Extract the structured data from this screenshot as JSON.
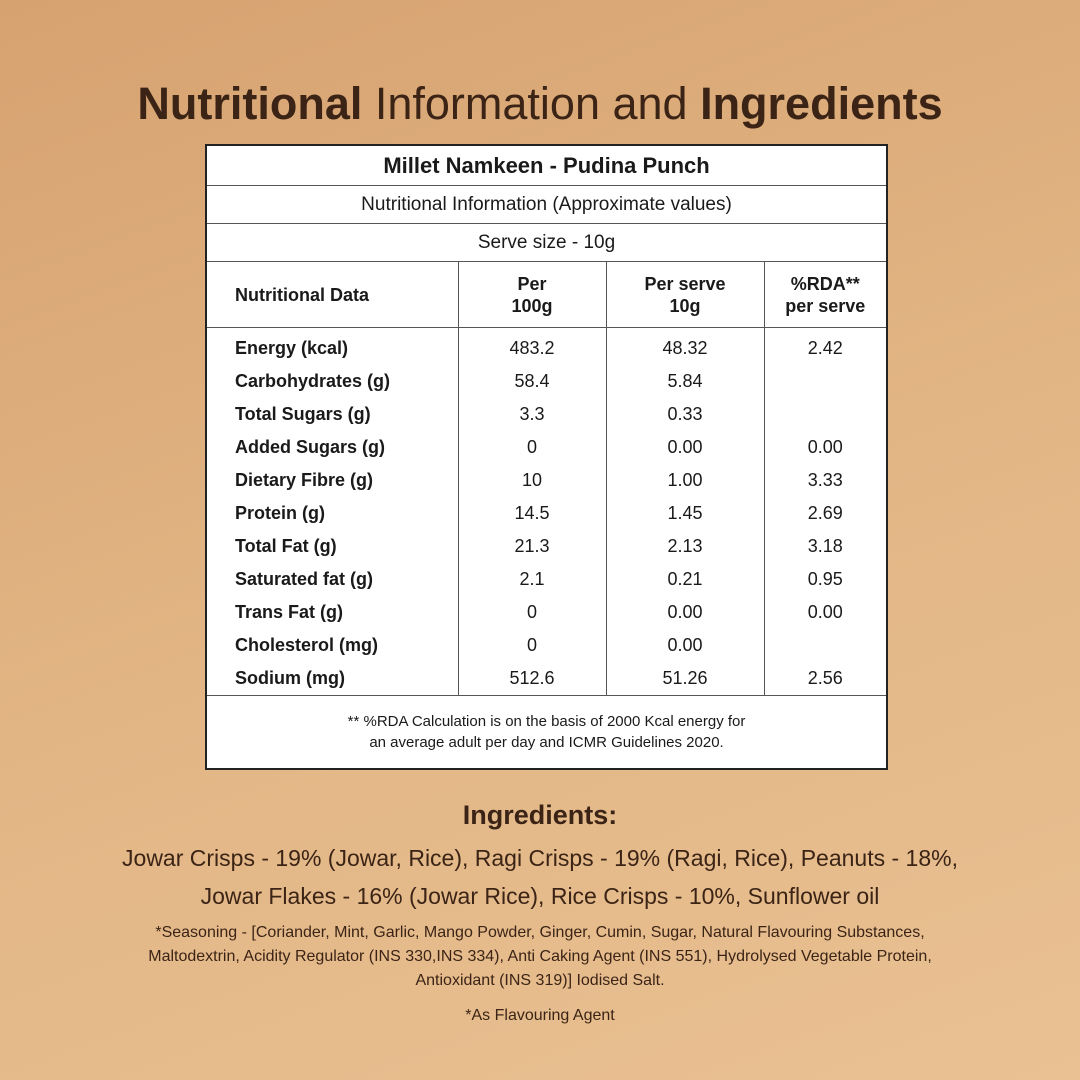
{
  "header": {
    "title_parts": [
      {
        "text": "Nutritional",
        "bold": true
      },
      {
        "text": " Information and ",
        "bold": false
      },
      {
        "text": "Ingredients",
        "bold": true
      }
    ]
  },
  "table": {
    "product": "Millet Namkeen - Pudina Punch",
    "subtitle": "Nutritional Information (Approximate values)",
    "serve_size": "Serve size - 10g",
    "columns": [
      [
        "Nutritional Data"
      ],
      [
        "Per",
        "100g"
      ],
      [
        "Per serve",
        "10g"
      ],
      [
        "%RDA**",
        "per serve"
      ]
    ],
    "rows": [
      [
        "Energy (kcal)",
        "483.2",
        "48.32",
        "2.42"
      ],
      [
        "Carbohydrates (g)",
        "58.4",
        "5.84",
        null
      ],
      [
        "Total Sugars (g)",
        "3.3",
        "0.33",
        null
      ],
      [
        "Added Sugars (g)",
        "0",
        "0.00",
        "0.00"
      ],
      [
        "Dietary Fibre (g)",
        "10",
        "1.00",
        "3.33"
      ],
      [
        "Protein (g)",
        "14.5",
        "1.45",
        "2.69"
      ],
      [
        "Total Fat (g)",
        "21.3",
        "2.13",
        "3.18"
      ],
      [
        "Saturated fat (g)",
        "2.1",
        "0.21",
        "0.95"
      ],
      [
        "Trans Fat (g)",
        "0",
        "0.00",
        "0.00"
      ],
      [
        "Cholesterol (mg)",
        "0",
        "0.00",
        null
      ],
      [
        "Sodium (mg)",
        "512.6",
        "51.26",
        "2.56"
      ]
    ],
    "footnote": [
      "** %RDA Calculation is on the basis of 2000 Kcal energy for",
      "an average adult per day and ICMR Guidelines 2020."
    ]
  },
  "ingredients": {
    "heading": "Ingredients:",
    "lines": [
      "Jowar Crisps - 19% (Jowar, Rice), Ragi Crisps - 19% (Ragi, Rice), Peanuts - 18%,",
      "Jowar Flakes - 16% (Jowar Rice), Rice Crisps - 10%, Sunflower oil"
    ],
    "seasoning": [
      "*Seasoning - [Coriander, Mint, Garlic, Mango Powder, Ginger, Cumin, Sugar, Natural Flavouring Substances,",
      "Maltodextrin, Acidity Regulator (INS 330,INS 334), Anti Caking Agent (INS 551), Hydrolysed Vegetable Protein,",
      "Antioxidant (INS 319)] Iodised Salt."
    ],
    "note": "*As Flavouring Agent"
  }
}
